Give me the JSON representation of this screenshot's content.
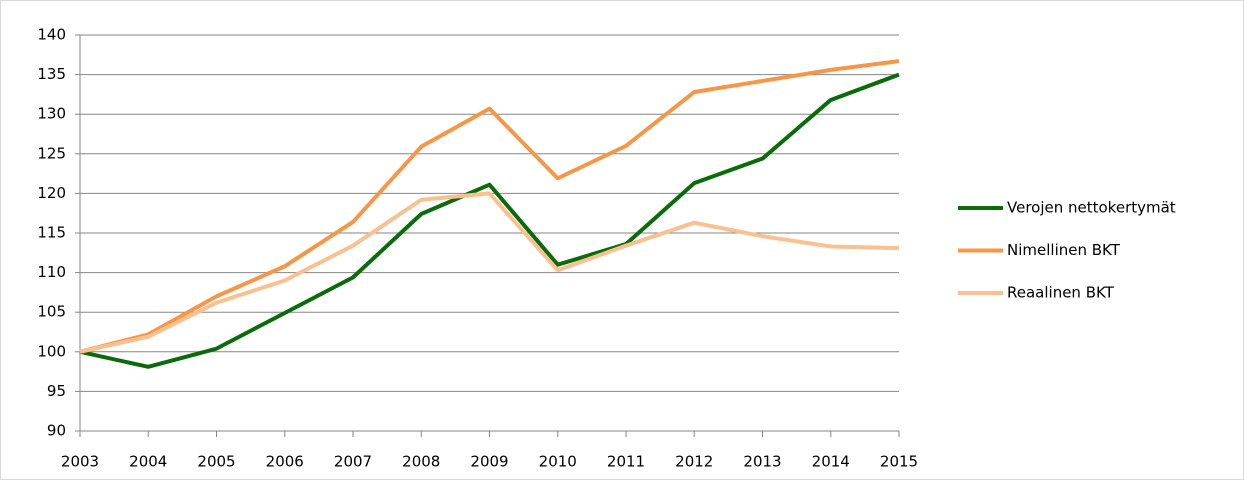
{
  "chart_data": {
    "type": "line",
    "x": [
      2003,
      2004,
      2005,
      2006,
      2007,
      2008,
      2009,
      2010,
      2011,
      2012,
      2013,
      2014,
      2015
    ],
    "series": [
      {
        "name": "Verojen nettokertymät",
        "color": "#0b6b0b",
        "values": [
          100,
          98.1,
          100.4,
          104.9,
          109.4,
          117.4,
          121.1,
          111,
          113.6,
          121.3,
          124.4,
          131.8,
          135
        ]
      },
      {
        "name": "Nimellinen BKT",
        "color": "#f79646",
        "values": [
          100,
          102.2,
          107,
          110.8,
          116.4,
          125.9,
          130.7,
          121.9,
          126,
          132.8,
          134.2,
          135.6,
          136.7
        ]
      },
      {
        "name": "Reaalinen BKT",
        "color": "#fac090",
        "values": [
          100,
          101.9,
          106.2,
          109,
          113.4,
          119.2,
          120,
          110.3,
          113.4,
          116.3,
          114.6,
          113.3,
          113.1
        ]
      }
    ],
    "xlim": [
      2003,
      2015
    ],
    "xticks": [
      2003,
      2004,
      2005,
      2006,
      2007,
      2008,
      2009,
      2010,
      2011,
      2012,
      2013,
      2014,
      2015
    ],
    "ylim": [
      90,
      140
    ],
    "yticks": [
      90,
      95,
      100,
      105,
      110,
      115,
      120,
      125,
      130,
      135,
      140
    ],
    "grid": true,
    "legend": "right"
  }
}
